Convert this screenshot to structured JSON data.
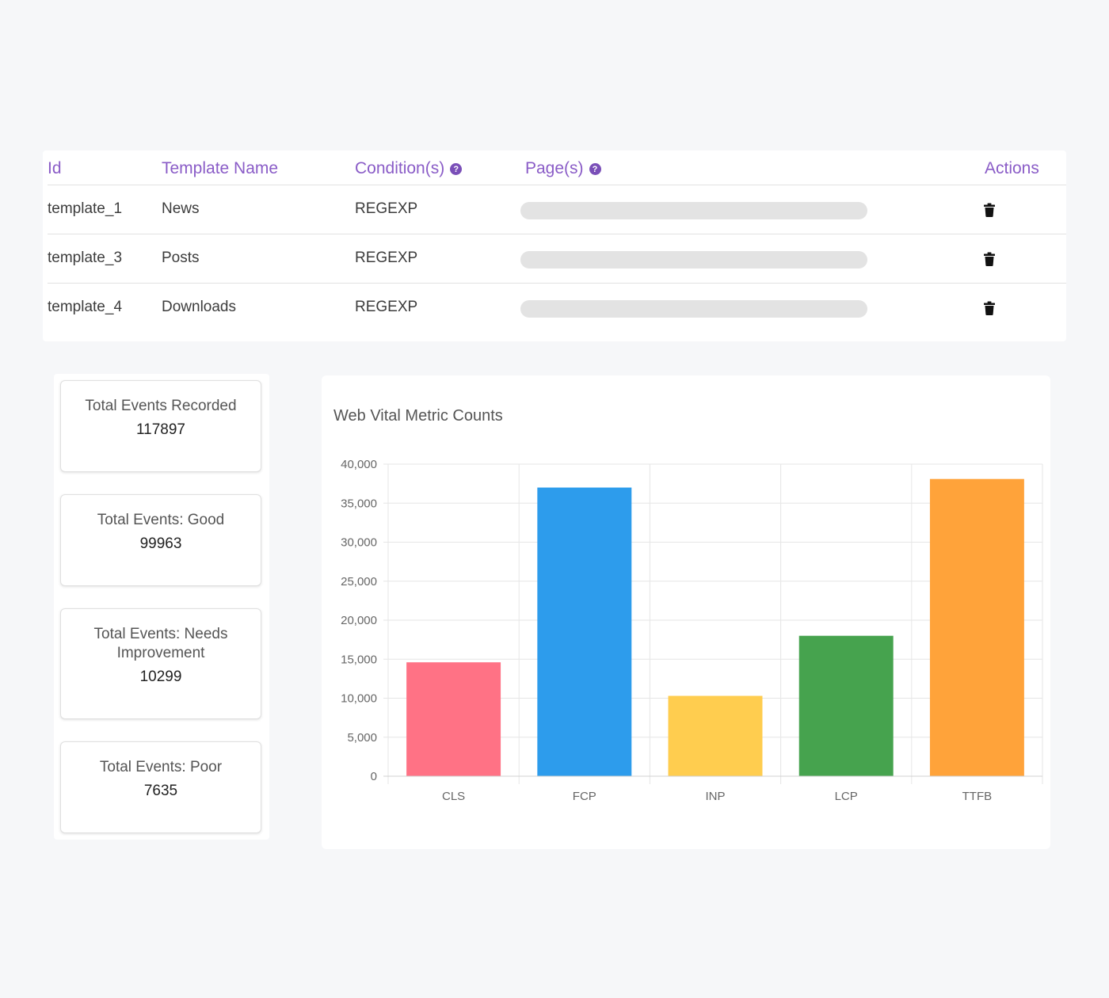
{
  "templates_table": {
    "columns": {
      "id": "Id",
      "name": "Template Name",
      "conditions": "Condition(s)",
      "pages": "Page(s)",
      "actions": "Actions"
    },
    "help_icon": "question-circle-icon",
    "rows": [
      {
        "id": "template_1",
        "name": "News",
        "condition": "REGEXP"
      },
      {
        "id": "template_3",
        "name": "Posts",
        "condition": "REGEXP"
      },
      {
        "id": "template_4",
        "name": "Downloads",
        "condition": "REGEXP"
      }
    ],
    "action_icon": "trash-icon"
  },
  "stats": [
    {
      "title": "Total Events Recorded",
      "value": "117897"
    },
    {
      "title": "Total Events: Good",
      "value": "99963"
    },
    {
      "title": "Total Events: Needs Improvement",
      "value": "10299"
    },
    {
      "title": "Total Events: Poor",
      "value": "7635"
    }
  ],
  "chart_data": {
    "type": "bar",
    "title": "Web Vital Metric Counts",
    "categories": [
      "CLS",
      "FCP",
      "INP",
      "LCP",
      "TTFB"
    ],
    "values": [
      14600,
      37000,
      10300,
      18000,
      38100
    ],
    "colors": [
      "#ff7285",
      "#2d9cec",
      "#ffcd4f",
      "#46a34e",
      "#ffa33a"
    ],
    "ylim": [
      0,
      40000
    ],
    "yticks": [
      "40,000",
      "35,000",
      "30,000",
      "25,000",
      "20,000",
      "15,000",
      "10,000",
      "5,000",
      "0"
    ],
    "xlabel": "",
    "ylabel": "",
    "grid": true,
    "legend": "none"
  }
}
